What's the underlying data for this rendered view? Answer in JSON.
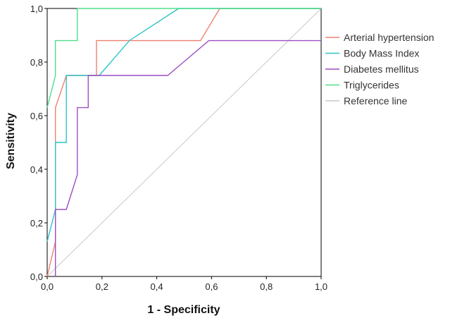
{
  "chart_data": {
    "type": "line",
    "title": "",
    "xlabel": "1 - Specificity",
    "ylabel": "Sensitivity",
    "xlim": [
      0,
      1
    ],
    "ylim": [
      0,
      1
    ],
    "x_ticks": [
      "0,0",
      "0,2",
      "0,4",
      "0,6",
      "0,8",
      "1,0"
    ],
    "y_ticks": [
      "0,0",
      "0,2",
      "0,4",
      "0,6",
      "0,8",
      "1,0"
    ],
    "grid": false,
    "legend_position": "right",
    "series": [
      {
        "name": "Arterial hypertension",
        "color": "#f08070",
        "points": [
          [
            0.0,
            0.0
          ],
          [
            0.03,
            0.13
          ],
          [
            0.03,
            0.5
          ],
          [
            0.03,
            0.63
          ],
          [
            0.07,
            0.75
          ],
          [
            0.18,
            0.75
          ],
          [
            0.18,
            0.88
          ],
          [
            0.56,
            0.88
          ],
          [
            0.63,
            1.0
          ],
          [
            1.0,
            1.0
          ]
        ]
      },
      {
        "name": "Body Mass Index",
        "color": "#2cc4c4",
        "points": [
          [
            0.0,
            0.13
          ],
          [
            0.03,
            0.25
          ],
          [
            0.03,
            0.5
          ],
          [
            0.07,
            0.5
          ],
          [
            0.07,
            0.75
          ],
          [
            0.19,
            0.75
          ],
          [
            0.3,
            0.88
          ],
          [
            0.48,
            1.0
          ],
          [
            1.0,
            1.0
          ]
        ]
      },
      {
        "name": "Diabetes mellitus",
        "color": "#9b4fc4",
        "points": [
          [
            0.03,
            0.0
          ],
          [
            0.03,
            0.25
          ],
          [
            0.07,
            0.25
          ],
          [
            0.11,
            0.38
          ],
          [
            0.11,
            0.63
          ],
          [
            0.15,
            0.63
          ],
          [
            0.15,
            0.75
          ],
          [
            0.44,
            0.75
          ],
          [
            0.59,
            0.88
          ],
          [
            1.0,
            0.88
          ]
        ]
      },
      {
        "name": "Triglycerides",
        "color": "#4ee08c",
        "points": [
          [
            0.0,
            0.63
          ],
          [
            0.03,
            0.75
          ],
          [
            0.03,
            0.88
          ],
          [
            0.11,
            0.88
          ],
          [
            0.11,
            1.0
          ],
          [
            1.0,
            1.0
          ]
        ]
      },
      {
        "name": "Reference line",
        "color": "#c8c8c8",
        "points": [
          [
            0.0,
            0.0
          ],
          [
            1.0,
            1.0
          ]
        ]
      }
    ]
  }
}
